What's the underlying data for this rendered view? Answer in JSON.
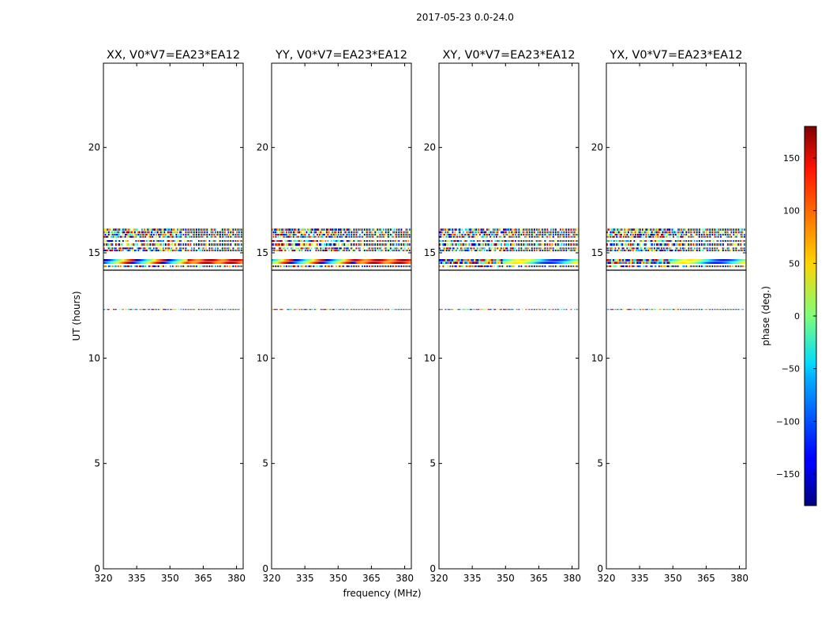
{
  "chart_data": {
    "type": "heatmap",
    "suptitle": "2017-05-23 0.0-24.0",
    "xlabel": "frequency (MHz)",
    "ylabel": "UT (hours)",
    "xlim": [
      320,
      383
    ],
    "ylim": [
      0,
      24
    ],
    "xticks": [
      320,
      335,
      350,
      365,
      380
    ],
    "yticks": [
      0,
      5,
      10,
      15,
      20
    ],
    "panels": [
      {
        "title": "XX, V0*V7=EA23*EA12",
        "wide_band_pattern": "rainbow"
      },
      {
        "title": "YY, V0*V7=EA23*EA12",
        "wide_band_pattern": "rainbow"
      },
      {
        "title": "XY, V0*V7=EA23*EA12",
        "wide_band_pattern": "noisy"
      },
      {
        "title": "YX, V0*V7=EA23*EA12",
        "wide_band_pattern": "noisy"
      }
    ],
    "data_bands_ut_hours": [
      {
        "start": 15.9,
        "end": 16.15,
        "pattern": "noisy"
      },
      {
        "start": 15.7,
        "end": 15.9,
        "pattern": "noisy"
      },
      {
        "start": 15.5,
        "end": 15.6,
        "pattern": "noisy"
      },
      {
        "start": 15.3,
        "end": 15.45,
        "pattern": "noisy"
      },
      {
        "start": 15.05,
        "end": 15.25,
        "pattern": "noisy"
      },
      {
        "start": 14.45,
        "end": 14.7,
        "pattern": "wide"
      },
      {
        "start": 14.3,
        "end": 14.4,
        "pattern": "noisy"
      },
      {
        "start": 14.15,
        "end": 14.2,
        "pattern": "line"
      },
      {
        "start": 12.28,
        "end": 12.33,
        "pattern": "noisy"
      }
    ],
    "colorbar": {
      "label": "phase (deg.)",
      "range": [
        -180,
        180
      ],
      "ticks": [
        -150,
        -100,
        -50,
        0,
        50,
        100,
        150
      ],
      "colormap": "jet"
    }
  }
}
